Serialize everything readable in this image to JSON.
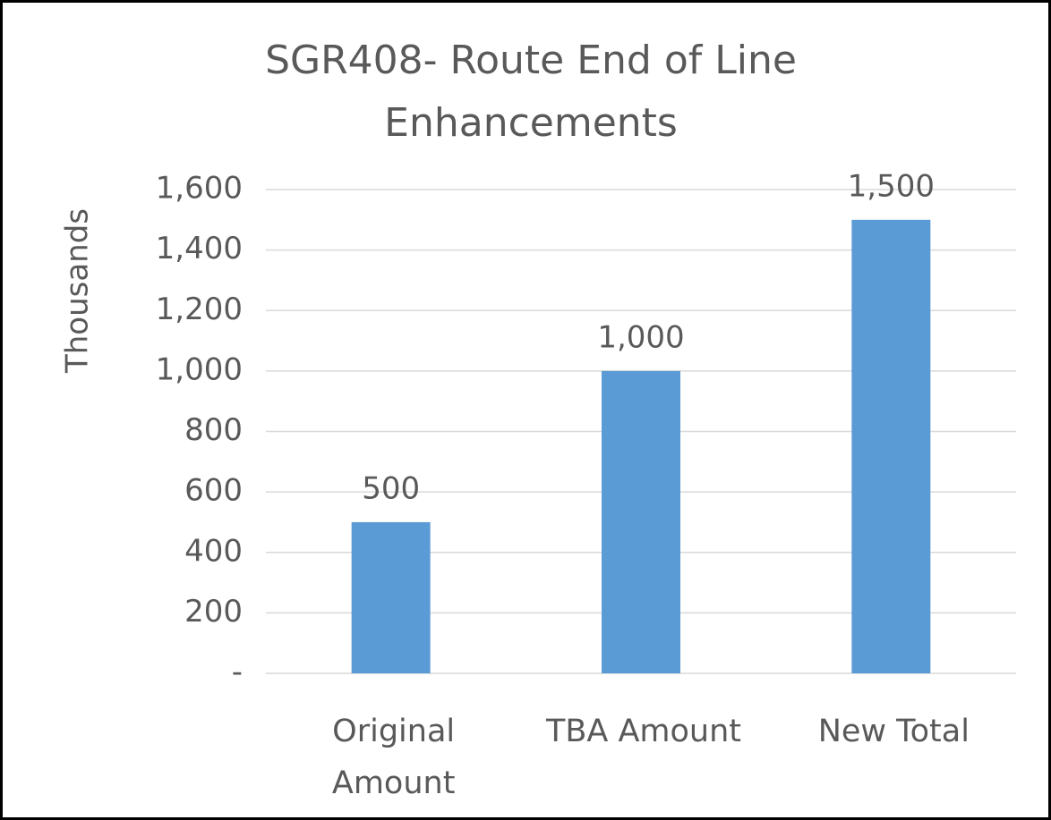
{
  "chart_data": {
    "type": "bar",
    "title": "SGR408- Route End of Line Enhancements",
    "y_label": "Thousands",
    "categories": [
      "Original Amount",
      "TBA Amount",
      "New Total"
    ],
    "values": [
      500,
      1000,
      1500
    ],
    "value_labels": [
      "500",
      "1,000",
      "1,500"
    ],
    "color": "#5b9bd5",
    "ylim": [
      0,
      1600
    ],
    "yticks": [
      {
        "value": 0,
        "label": "-"
      },
      200,
      400,
      600,
      800,
      {
        "value": 1000,
        "label": "1,000"
      },
      {
        "value": 1200,
        "label": "1,200"
      },
      {
        "value": 1400,
        "label": "1,400"
      },
      {
        "value": 1600,
        "label": "1,600"
      }
    ],
    "grid": true
  }
}
